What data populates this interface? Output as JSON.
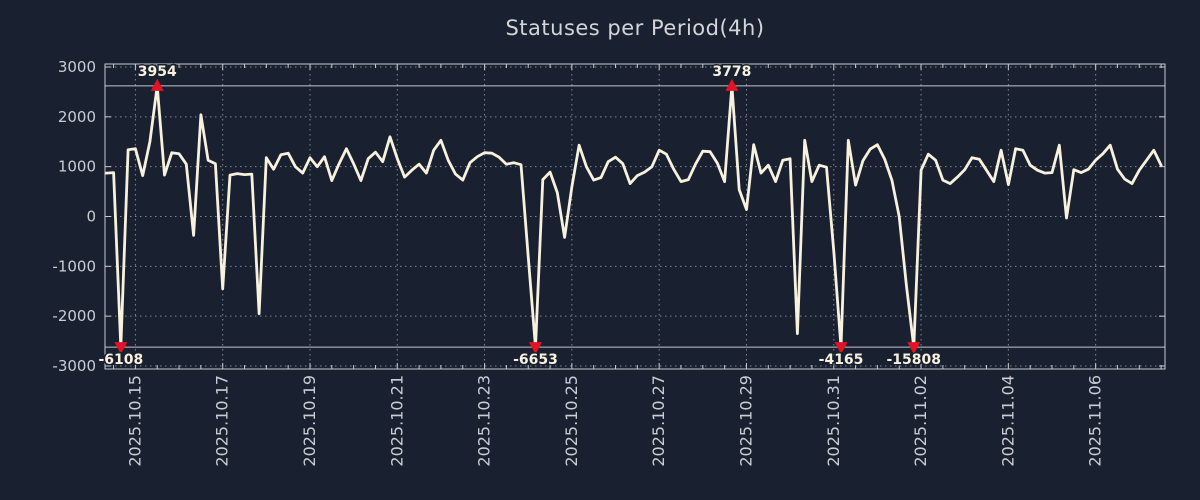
{
  "title": "Statuses per Period(4h)",
  "chart_data": {
    "type": "line",
    "title": "Statuses per Period(4h)",
    "series_name": "statuses",
    "x_start": "2025-10-14 08:00",
    "period_hours": 4,
    "values": [
      870,
      880,
      -6108,
      1340,
      1360,
      820,
      1500,
      3954,
      830,
      1280,
      1260,
      1050,
      -380,
      2040,
      1130,
      1060,
      -1450,
      830,
      860,
      840,
      850,
      -1950,
      1180,
      950,
      1240,
      1270,
      1000,
      870,
      1180,
      1000,
      1200,
      720,
      1060,
      1360,
      1060,
      720,
      1160,
      1290,
      1100,
      1600,
      1160,
      790,
      930,
      1050,
      870,
      1330,
      1530,
      1130,
      850,
      730,
      1080,
      1200,
      1280,
      1270,
      1190,
      1050,
      1080,
      1040,
      -800,
      -6653,
      740,
      890,
      480,
      -420,
      600,
      1430,
      1000,
      730,
      780,
      1100,
      1190,
      1060,
      660,
      820,
      890,
      1000,
      1330,
      1250,
      950,
      700,
      740,
      1050,
      1310,
      1300,
      1070,
      700,
      3778,
      540,
      140,
      1440,
      870,
      1030,
      700,
      1130,
      1160,
      -2350,
      1530,
      700,
      1030,
      990,
      -700,
      -4165,
      1530,
      630,
      1120,
      1350,
      1440,
      1150,
      720,
      0,
      -1400,
      -15808,
      930,
      1250,
      1130,
      730,
      660,
      790,
      940,
      1180,
      1150,
      930,
      700,
      1330,
      640,
      1360,
      1330,
      1030,
      930,
      870,
      880,
      1430,
      -30,
      940,
      880,
      950,
      1130,
      1260,
      1430,
      950,
      750,
      660,
      930,
      1130,
      1330,
      1030
    ],
    "y_ticks": [
      3000,
      2000,
      1000,
      0,
      -1000,
      -2000,
      -3000
    ],
    "ylim": [
      -3060,
      3060
    ],
    "display_clip": [
      -2620,
      2620
    ],
    "x_tick_labels": [
      "2025.10.15",
      "2025.10.17",
      "2025.10.19",
      "2025.10.21",
      "2025.10.23",
      "2025.10.25",
      "2025.10.27",
      "2025.10.29",
      "2025.10.31",
      "2025.11.02",
      "2025.11.04",
      "2025.11.06"
    ],
    "x_tick_indices": [
      4,
      16,
      28,
      40,
      52,
      64,
      76,
      88,
      100,
      112,
      124,
      136
    ],
    "annotations": [
      {
        "index": 2,
        "label": "-6108",
        "value": -6108,
        "direction": "down"
      },
      {
        "index": 7,
        "label": "3954",
        "value": 3954,
        "direction": "up"
      },
      {
        "index": 59,
        "label": "-6653",
        "value": -6653,
        "direction": "down"
      },
      {
        "index": 86,
        "label": "3778",
        "value": 3778,
        "direction": "up"
      },
      {
        "index": 101,
        "label": "-4165",
        "value": -4165,
        "direction": "down"
      },
      {
        "index": 111,
        "label": "-15808",
        "value": -15808,
        "direction": "down"
      }
    ],
    "grid": "dotted",
    "legend": "none",
    "colors": {
      "background": "#192130",
      "line": "#f7f1de",
      "marker": "#e31224",
      "grid": "#9aa2ae",
      "frame": "#c6cad2",
      "clip_line": "#c0c5ce",
      "tick_label": "#c9cdd4",
      "title": "#d3d5d9",
      "annotation_text": "#f7f1de"
    }
  }
}
